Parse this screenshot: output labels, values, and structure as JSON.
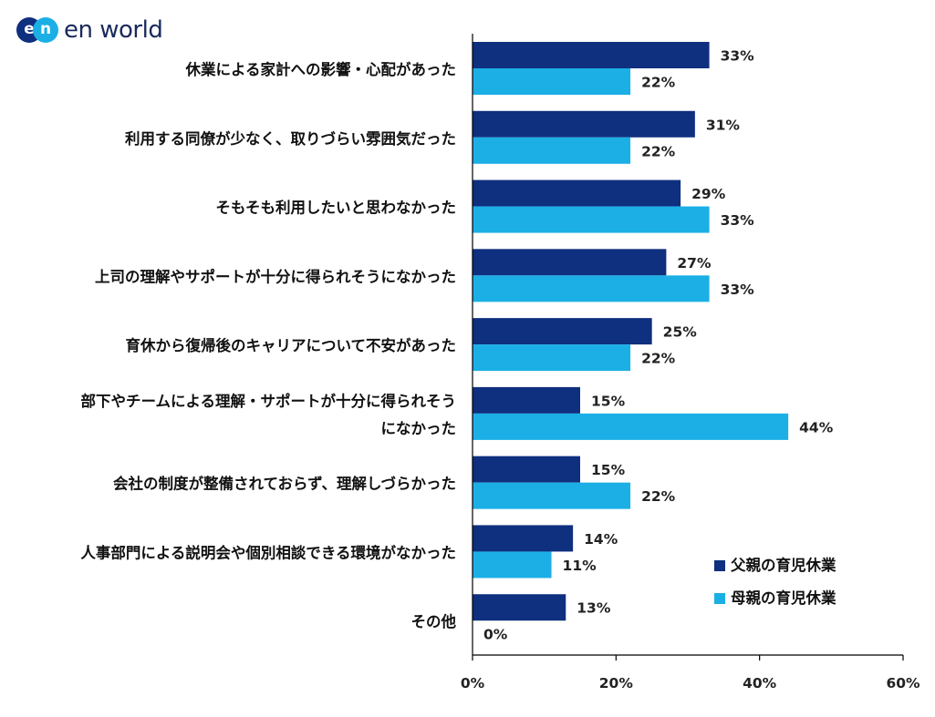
{
  "logo": {
    "mark_left": "e",
    "mark_right": "n",
    "text": "en world"
  },
  "colors": {
    "father": "#0f2f7f",
    "mother": "#1bafe6",
    "axis": "#000000"
  },
  "chart_data": {
    "type": "bar",
    "orientation": "horizontal",
    "categories": [
      [
        "休業による家計への影響・心配があった"
      ],
      [
        "利用する同僚が少なく、取りづらい雰囲気だった"
      ],
      [
        "そもそも利用したいと思わなかった"
      ],
      [
        "上司の理解やサポートが十分に得られそうになかった"
      ],
      [
        "育休から復帰後のキャリアについて不安があった"
      ],
      [
        "部下やチームによる理解・サポートが十分に得られそう",
        "になかった"
      ],
      [
        "会社の制度が整備されておらず、理解しづらかった"
      ],
      [
        "人事部門による説明会や個別相談できる環境がなかった"
      ],
      [
        "その他"
      ]
    ],
    "series": [
      {
        "name": "父親の育児休業",
        "values": [
          33,
          31,
          29,
          27,
          25,
          15,
          15,
          14,
          13
        ],
        "labels": [
          "33%",
          "31%",
          "29%",
          "27%",
          "25%",
          "15%",
          "15%",
          "14%",
          "13%"
        ]
      },
      {
        "name": "母親の育児休業",
        "values": [
          22,
          22,
          33,
          33,
          22,
          44,
          22,
          11,
          0
        ],
        "labels": [
          "22%",
          "22%",
          "33%",
          "33%",
          "22%",
          "44%",
          "22%",
          "11%",
          "0%"
        ]
      }
    ],
    "xlim": [
      0,
      60
    ],
    "xticks": [
      0,
      20,
      40,
      60
    ],
    "xtick_labels": [
      "0%",
      "20%",
      "40%",
      "60%"
    ],
    "legend_position": "lower-right",
    "grid": false
  }
}
